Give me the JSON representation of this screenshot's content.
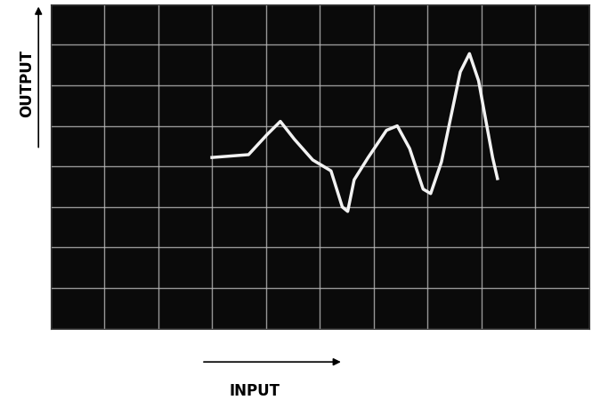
{
  "chart_data": {
    "type": "line",
    "x_label": "INPUT",
    "y_label": "OUTPUT",
    "x": [
      3.0,
      3.68,
      4.02,
      4.27,
      4.53,
      4.87,
      5.21,
      5.42,
      5.52,
      5.64,
      5.9,
      6.24,
      6.44,
      6.67,
      6.92,
      7.06,
      7.26,
      7.61,
      7.78,
      7.95,
      8.21,
      8.3
    ],
    "values": [
      0.22,
      0.29,
      0.78,
      1.11,
      0.67,
      0.16,
      -0.11,
      -1.0,
      -1.11,
      -0.33,
      0.22,
      0.89,
      1.0,
      0.44,
      -0.56,
      -0.67,
      0.11,
      2.33,
      2.78,
      2.11,
      0.22,
      -0.3
    ],
    "color": "#f2f2f2",
    "xlim": [
      0,
      10
    ],
    "ylim": [
      -4,
      4
    ],
    "xticks": [
      0,
      1,
      2,
      3,
      4,
      5,
      6,
      7,
      8,
      9,
      10
    ],
    "yticks": [
      -4,
      -3,
      -2,
      -1,
      0,
      1,
      2,
      3,
      4
    ],
    "grid": true,
    "tick_labels": false,
    "line_style": "solid"
  }
}
